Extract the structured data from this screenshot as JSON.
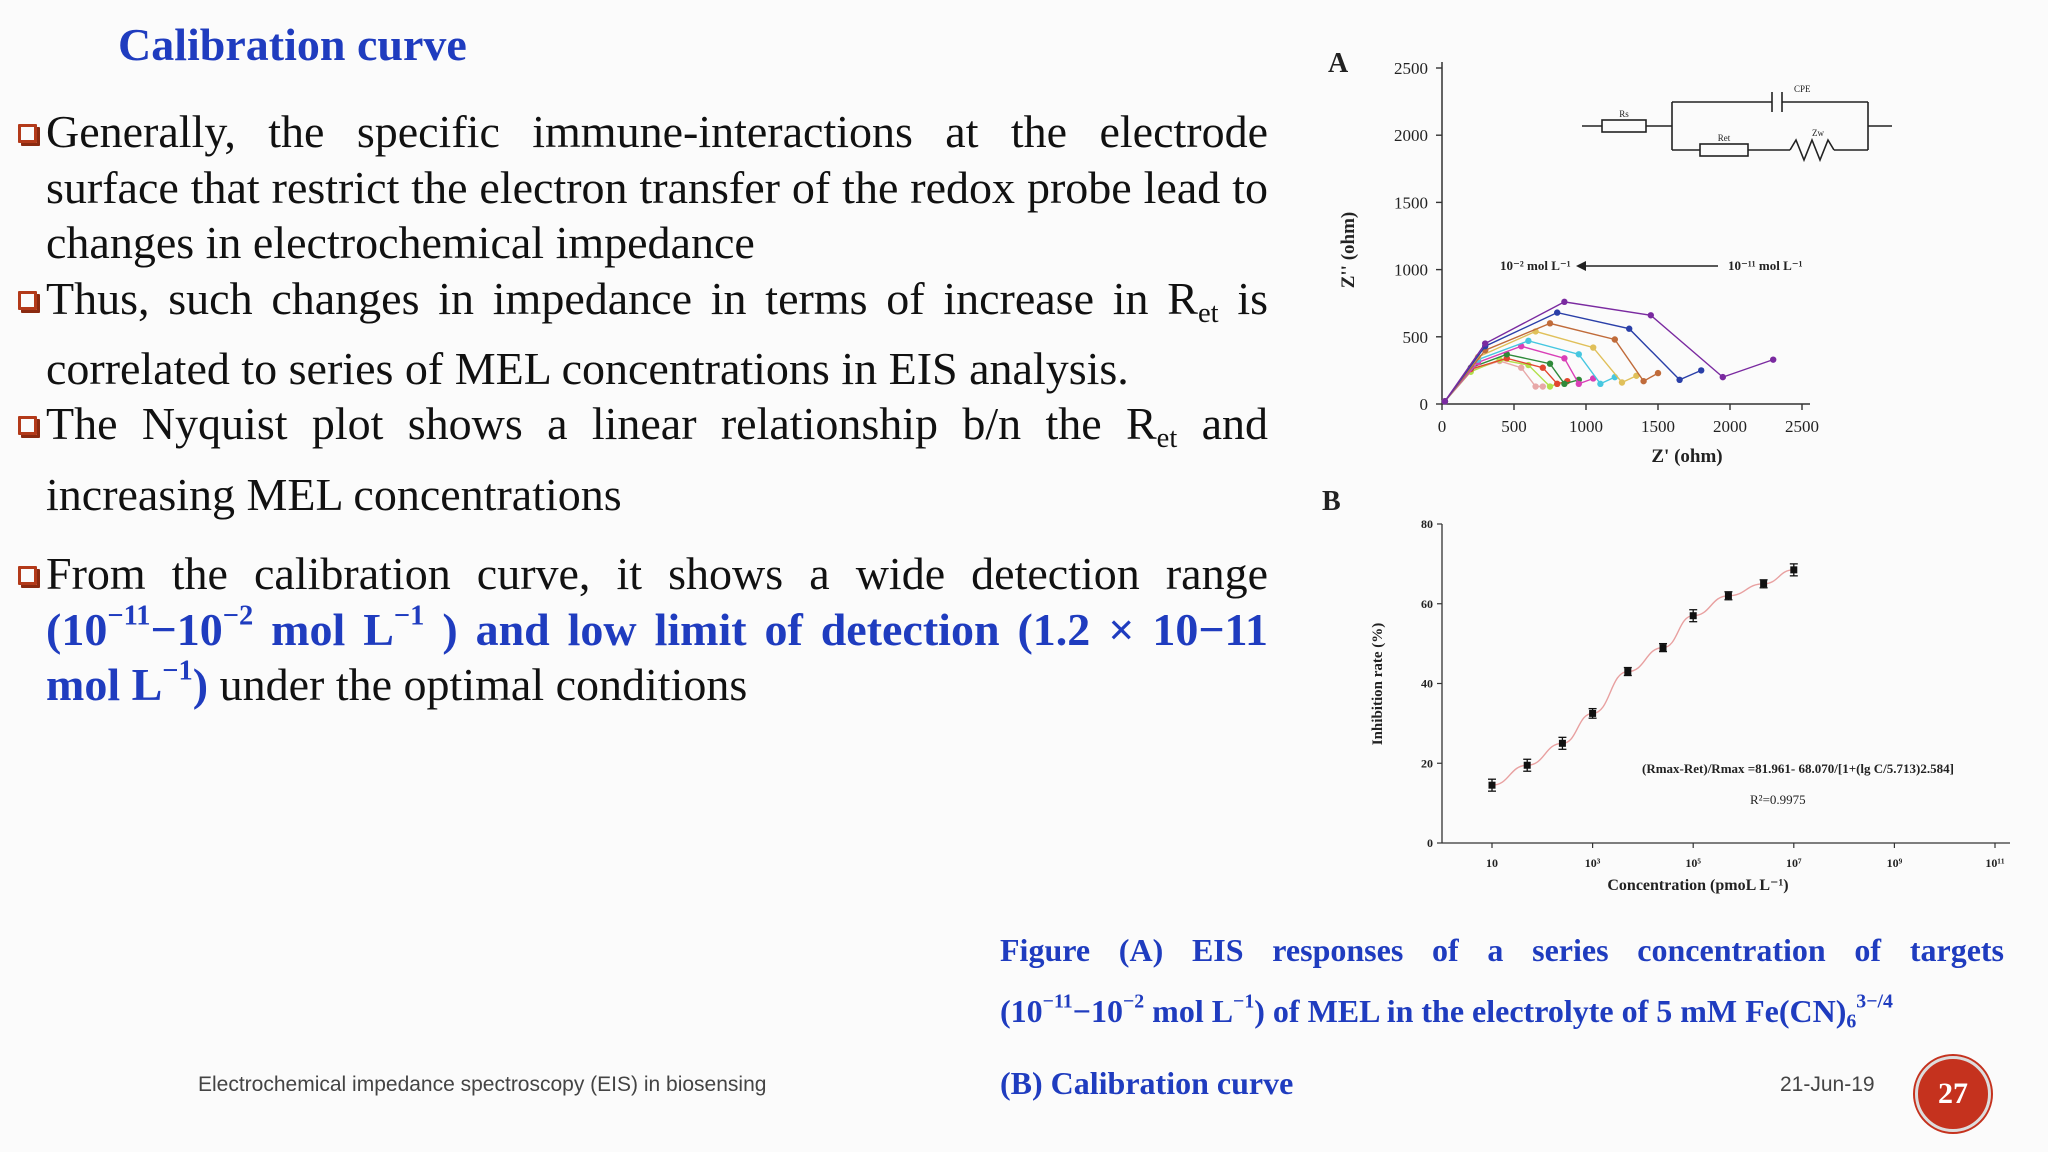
{
  "slide": {
    "title": "Calibration curve",
    "bullets": [
      {
        "text": "Generally, the specific immune-interactions at the electrode surface that restrict the electron transfer of the redox probe lead to changes in electrochemical impedance"
      },
      {
        "pre": "Thus, such changes in impedance in terms of  increase in R",
        "sub": "et",
        "post": " is correlated to series of MEL concentrations in EIS analysis."
      },
      {
        "pre": "The Nyquist plot shows a linear relationship b/n the R",
        "sub": "et",
        "post": " and increasing MEL concentrations"
      },
      {
        "pre": "From the calibration curve, it shows a wide detection range ",
        "hl1": "(10",
        "hl1_sup": "−11",
        "hl1_mid": "−10",
        "hl1_sup2": "−2",
        "hl1_end": " mol L",
        "hl1_sup3": "−1",
        "hl1_close": " ) and  low limit of detection (1.2 × 10−11 mol L",
        "hl1_sup4": "−1",
        "hl1_final": ")",
        "post": "  under the optimal conditions"
      }
    ]
  },
  "figure": {
    "panel_a_label": "A",
    "panel_b_label": "B",
    "circuit_labels": {
      "rs": "Rs",
      "ret": "Ret",
      "cpe": "CPE",
      "zw": "Zw"
    },
    "arrow_left_label": "10⁻² mol L⁻¹",
    "arrow_right_label": "10⁻¹¹ mol L⁻¹",
    "equation": "(Rmax-Ret)/Rmax =81.961- 68.070/[1+(lg C/5.713)2.584]",
    "r_squared": "R²=0.9975",
    "caption_line1": "Figure (A) EIS responses of a series concentration of targets",
    "caption_line2_a": "(10",
    "caption_line2_sup1": "−11",
    "caption_line2_b": "−10",
    "caption_line2_sup2": "−2",
    "caption_line2_c": " mol L",
    "caption_line2_sup3": "−1",
    "caption_line2_d": ") of MEL in the electrolyte of 5 mM Fe(CN)",
    "caption_line2_sub": "6",
    "caption_line2_sup4": "3−/4",
    "caption_line3": "(B) Calibration curve"
  },
  "footer": {
    "left": "Electrochemical impedance spectroscopy (EIS) in biosensing",
    "date": "21-Jun-19",
    "page": "27"
  },
  "colors": {
    "title_blue": "#1f3cbf",
    "bullet_red": "#b33a1a",
    "badge_red": "#c5321e"
  },
  "chart_data": [
    {
      "type": "scatter",
      "title": "",
      "xlabel": "Z' (ohm)",
      "ylabel": "Z'' (ohm)",
      "xlim": [
        0,
        2500
      ],
      "ylim": [
        0,
        2500
      ],
      "xticks": [
        "0",
        "500",
        "1000",
        "1500",
        "2000",
        "2500"
      ],
      "yticks": [
        "0",
        "500",
        "1000",
        "1500",
        "2000",
        "2500"
      ],
      "series": [
        {
          "color": "#e8a8a8",
          "points": [
            [
              20,
              20
            ],
            [
              200,
              250
            ],
            [
              400,
              320
            ],
            [
              550,
              270
            ],
            [
              650,
              130
            ],
            [
              700,
              130
            ]
          ]
        },
        {
          "color": "#b2e04c",
          "points": [
            [
              20,
              20
            ],
            [
              200,
              240
            ],
            [
              400,
              330
            ],
            [
              600,
              290
            ],
            [
              750,
              130
            ],
            [
              800,
              150
            ]
          ]
        },
        {
          "color": "#e2462f",
          "points": [
            [
              20,
              20
            ],
            [
              200,
              260
            ],
            [
              450,
              340
            ],
            [
              700,
              270
            ],
            [
              800,
              150
            ],
            [
              870,
              170
            ]
          ]
        },
        {
          "color": "#2f8a3a",
          "points": [
            [
              20,
              20
            ],
            [
              200,
              270
            ],
            [
              450,
              370
            ],
            [
              750,
              300
            ],
            [
              850,
              150
            ],
            [
              950,
              180
            ]
          ]
        },
        {
          "color": "#d93fb7",
          "points": [
            [
              20,
              20
            ],
            [
              250,
              310
            ],
            [
              550,
              430
            ],
            [
              850,
              340
            ],
            [
              950,
              150
            ],
            [
              1050,
              190
            ]
          ]
        },
        {
          "color": "#46c7e0",
          "points": [
            [
              20,
              20
            ],
            [
              250,
              330
            ],
            [
              600,
              470
            ],
            [
              950,
              370
            ],
            [
              1100,
              150
            ],
            [
              1200,
              200
            ]
          ]
        },
        {
          "color": "#e0c05a",
          "points": [
            [
              20,
              20
            ],
            [
              250,
              350
            ],
            [
              650,
              540
            ],
            [
              1050,
              420
            ],
            [
              1250,
              160
            ],
            [
              1350,
              210
            ]
          ]
        },
        {
          "color": "#c06b3a",
          "points": [
            [
              20,
              20
            ],
            [
              300,
              400
            ],
            [
              750,
              600
            ],
            [
              1200,
              480
            ],
            [
              1400,
              170
            ],
            [
              1500,
              230
            ]
          ]
        },
        {
          "color": "#2a3fa8",
          "points": [
            [
              20,
              20
            ],
            [
              300,
              430
            ],
            [
              800,
              680
            ],
            [
              1300,
              560
            ],
            [
              1650,
              180
            ],
            [
              1800,
              250
            ]
          ]
        },
        {
          "color": "#7a2aa0",
          "points": [
            [
              20,
              20
            ],
            [
              300,
              450
            ],
            [
              850,
              760
            ],
            [
              1450,
              660
            ],
            [
              1950,
              200
            ],
            [
              2300,
              330
            ]
          ]
        }
      ]
    },
    {
      "type": "scatter",
      "title": "",
      "xlabel": "Concentration (pmoL L⁻¹)",
      "ylabel": "Inhibition rate (%)",
      "xscale": "log",
      "xlim": [
        1,
        11
      ],
      "ylim": [
        0,
        80
      ],
      "xticks": [
        "10",
        "10³",
        "10⁵",
        "10⁷",
        "10⁹",
        "10¹¹"
      ],
      "yticks": [
        "0",
        "20",
        "40",
        "60",
        "80"
      ],
      "x": [
        1,
        1.7,
        2.4,
        3,
        3.7,
        4.4,
        5,
        5.7,
        6.4,
        7
      ],
      "y": [
        14.5,
        19.5,
        25,
        32.5,
        43,
        49,
        57,
        62,
        65,
        68.5
      ],
      "error": [
        1.5,
        1.5,
        1.5,
        1.2,
        1,
        1,
        1.5,
        1,
        1,
        1.5
      ]
    }
  ]
}
